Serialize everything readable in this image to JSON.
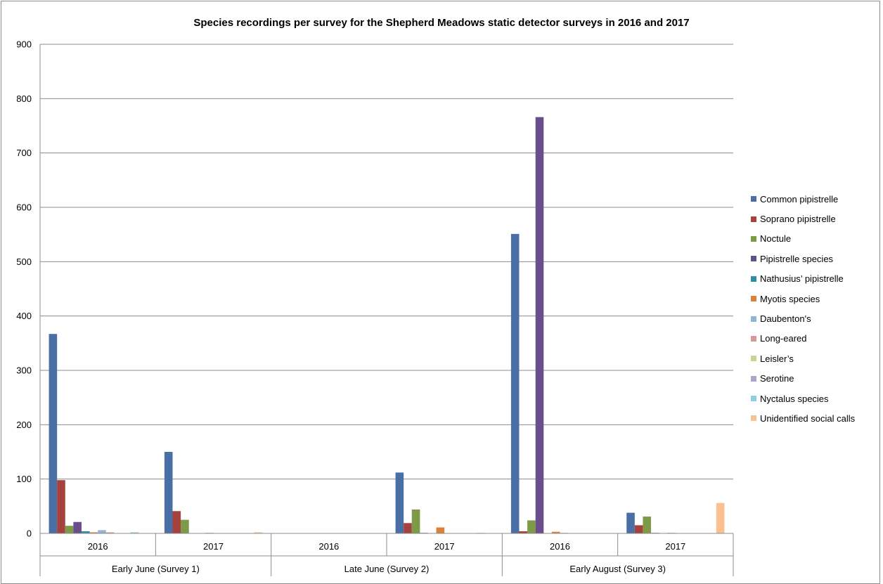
{
  "chart_data": {
    "type": "bar",
    "title": "Species recordings per survey for the Shepherd Meadows static detector surveys in 2016 and 2017",
    "xlabel": "",
    "ylabel": "",
    "ylim": [
      0,
      900
    ],
    "yticks": [
      0,
      100,
      200,
      300,
      400,
      500,
      600,
      700,
      800,
      900
    ],
    "grid": true,
    "legend_position": "right",
    "groups": [
      {
        "label": "Early June (Survey 1)",
        "categories": [
          "2016",
          "2017"
        ]
      },
      {
        "label": "Late June (Survey 2)",
        "categories": [
          "2016",
          "2017"
        ]
      },
      {
        "label": "Early August (Survey 3)",
        "categories": [
          "2016",
          "2017"
        ]
      }
    ],
    "categories": [
      "2016",
      "2017",
      "2016",
      "2017",
      "2016",
      "2017"
    ],
    "series": [
      {
        "name": "Common pipistrelle",
        "color": "#4A6FA5",
        "values": [
          367,
          150,
          0,
          112,
          551,
          38
        ]
      },
      {
        "name": "Soprano pipistrelle",
        "color": "#A7413E",
        "values": [
          98,
          41,
          0,
          19,
          4,
          15
        ]
      },
      {
        "name": "Noctule",
        "color": "#7D9A48",
        "values": [
          14,
          25,
          0,
          44,
          24,
          31
        ]
      },
      {
        "name": "Pipistrelle species",
        "color": "#6A4E8C",
        "values": [
          21,
          0,
          0,
          1,
          766,
          1
        ]
      },
      {
        "name": "Nathusius’ pipistrelle",
        "color": "#2E8FA8",
        "values": [
          4,
          0,
          0,
          0,
          0,
          0
        ]
      },
      {
        "name": "Myotis species",
        "color": "#D9823B",
        "values": [
          2,
          1,
          0,
          11,
          3,
          1
        ]
      },
      {
        "name": "Daubenton's",
        "color": "#95B3D7",
        "values": [
          6,
          0,
          0,
          0,
          1,
          0
        ]
      },
      {
        "name": "Long-eared",
        "color": "#D99795",
        "values": [
          2,
          0,
          0,
          0,
          0,
          0
        ]
      },
      {
        "name": "Leisler’s",
        "color": "#C3D69B",
        "values": [
          0,
          0,
          0,
          0,
          0,
          0
        ]
      },
      {
        "name": "Serotine",
        "color": "#B3A2C7",
        "values": [
          0,
          0,
          0,
          0,
          0,
          0
        ]
      },
      {
        "name": "Nyctalus species",
        "color": "#93CDDD",
        "values": [
          2,
          0,
          0,
          1,
          0,
          0
        ]
      },
      {
        "name": "Unidentified social calls",
        "color": "#FAC090",
        "values": [
          0,
          2,
          0,
          0,
          0,
          56
        ]
      }
    ]
  }
}
